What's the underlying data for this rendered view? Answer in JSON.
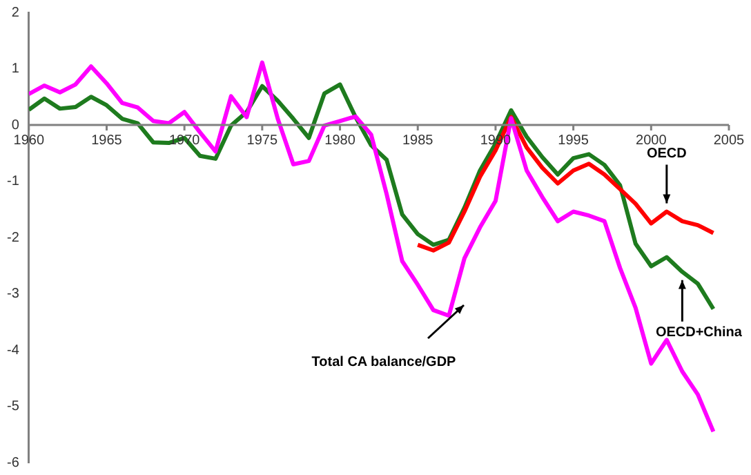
{
  "chart_data": {
    "type": "line",
    "x": [
      1960,
      1961,
      1962,
      1963,
      1964,
      1965,
      1966,
      1967,
      1968,
      1969,
      1970,
      1971,
      1972,
      1973,
      1974,
      1975,
      1976,
      1977,
      1978,
      1979,
      1980,
      1981,
      1982,
      1983,
      1984,
      1985,
      1986,
      1987,
      1988,
      1989,
      1990,
      1991,
      1992,
      1993,
      1994,
      1995,
      1996,
      1997,
      1998,
      1999,
      2000,
      2001,
      2002,
      2003,
      2004
    ],
    "series": [
      {
        "color": "#ff00ff",
        "values": [
          0.55,
          0.7,
          0.58,
          0.72,
          1.04,
          0.74,
          0.39,
          0.31,
          0.07,
          0.03,
          0.23,
          -0.13,
          -0.47,
          0.51,
          0.14,
          1.11,
          0.11,
          -0.7,
          -0.64,
          -0.01,
          0.07,
          0.15,
          -0.17,
          -1.23,
          -2.42,
          -2.84,
          -3.29,
          -3.39,
          -2.37,
          -1.82,
          -1.35,
          0.12,
          -0.81,
          -1.28,
          -1.71,
          -1.54,
          -1.61,
          -1.71,
          -2.54,
          -3.25,
          -4.24,
          -3.82,
          -4.38,
          -4.79,
          -5.45
        ]
      },
      {
        "color": "#ff0000",
        "values": [
          null,
          null,
          null,
          null,
          null,
          null,
          null,
          null,
          null,
          null,
          null,
          null,
          null,
          null,
          null,
          null,
          null,
          null,
          null,
          null,
          null,
          null,
          null,
          null,
          null,
          -2.13,
          -2.23,
          -2.09,
          -1.54,
          -0.92,
          -0.45,
          0.14,
          -0.4,
          -0.76,
          -1.04,
          -0.81,
          -0.69,
          -0.88,
          -1.14,
          -1.4,
          -1.75,
          -1.54,
          -1.71,
          -1.78,
          -1.92
        ]
      },
      {
        "color": "#1e7b1e",
        "values": [
          0.27,
          0.47,
          0.29,
          0.32,
          0.5,
          0.35,
          0.11,
          0.03,
          -0.31,
          -0.32,
          -0.23,
          -0.55,
          -0.6,
          -0.01,
          0.23,
          0.69,
          0.43,
          0.11,
          -0.23,
          0.56,
          0.72,
          0.14,
          -0.36,
          -0.62,
          -1.59,
          -1.94,
          -2.13,
          -2.04,
          -1.47,
          -0.81,
          -0.33,
          0.26,
          -0.21,
          -0.57,
          -0.88,
          -0.59,
          -0.52,
          -0.71,
          -1.07,
          -2.11,
          -2.51,
          -2.35,
          -2.61,
          -2.82,
          -3.27
        ]
      }
    ],
    "xlim": [
      1960,
      2005
    ],
    "xticks": [
      1960,
      1965,
      1970,
      1975,
      1980,
      1985,
      1990,
      1995,
      2000,
      2005
    ],
    "ylim": [
      -6,
      2
    ],
    "yticks": [
      -6,
      -5,
      -4,
      -3,
      -2,
      -1,
      0,
      1,
      2
    ],
    "grid": false,
    "legend": false,
    "marker": "none",
    "line_style": "solid",
    "annotations": [
      {
        "text": "OECD",
        "x": 2001,
        "y": -1.54
      },
      {
        "text": "OECD+China",
        "x": 2002,
        "y": -2.61
      },
      "Total CA balance/GDP"
    ]
  }
}
